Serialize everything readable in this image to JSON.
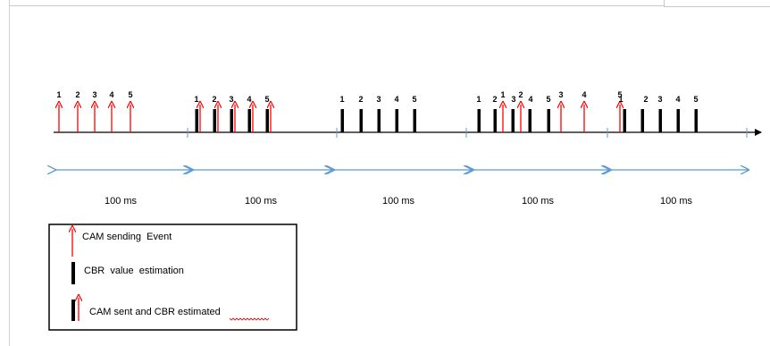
{
  "colors": {
    "event_arrow": "#ff0000",
    "cbr_bar": "#000000",
    "duration_arrow": "#5b9bd5",
    "timeline": "#000000",
    "spell_underline": "#cc0000"
  },
  "timeline": {
    "events": [
      {
        "label": "1",
        "kind": "cam"
      },
      {
        "label": "2",
        "kind": "cam"
      },
      {
        "label": "3",
        "kind": "cam"
      },
      {
        "label": "4",
        "kind": "cam"
      },
      {
        "label": "5",
        "kind": "cam"
      },
      {
        "label": "1",
        "kind": "both"
      },
      {
        "label": "2",
        "kind": "both"
      },
      {
        "label": "3",
        "kind": "both"
      },
      {
        "label": "4",
        "kind": "both"
      },
      {
        "label": "5",
        "kind": "both"
      },
      {
        "label": "1",
        "kind": "cbr"
      },
      {
        "label": "2",
        "kind": "cbr"
      },
      {
        "label": "3",
        "kind": "cbr"
      },
      {
        "label": "4",
        "kind": "cbr"
      },
      {
        "label": "5",
        "kind": "cbr"
      },
      {
        "label": "1",
        "kind": "cbr"
      },
      {
        "label": "2",
        "kind": "cbr"
      },
      {
        "label": "1",
        "kind": "cam"
      },
      {
        "label": "3",
        "kind": "cbr"
      },
      {
        "label": "2",
        "kind": "cam"
      },
      {
        "label": "4",
        "kind": "cbr"
      },
      {
        "label": "5",
        "kind": "cbr"
      },
      {
        "label": "3",
        "kind": "cam"
      },
      {
        "label": "4",
        "kind": "cam"
      },
      {
        "label": "5",
        "kind": "cam"
      },
      {
        "label": "1",
        "kind": "cbr"
      },
      {
        "label": "2",
        "kind": "cbr"
      },
      {
        "label": "3",
        "kind": "cbr"
      },
      {
        "label": "4",
        "kind": "cbr"
      },
      {
        "label": "5",
        "kind": "cbr"
      }
    ]
  },
  "intervals": [
    {
      "label": "100 ms"
    },
    {
      "label": "100 ms"
    },
    {
      "label": "100 ms"
    },
    {
      "label": "100 ms"
    },
    {
      "label": "100 ms"
    }
  ],
  "legend": {
    "items": [
      {
        "kind": "cam",
        "label": "CAM sending  Event"
      },
      {
        "kind": "cbr",
        "label": "CBR  value  estimation"
      },
      {
        "kind": "both",
        "label_prefix": "CAM sent and CBR ",
        "label_underlined": "estimated"
      }
    ]
  }
}
